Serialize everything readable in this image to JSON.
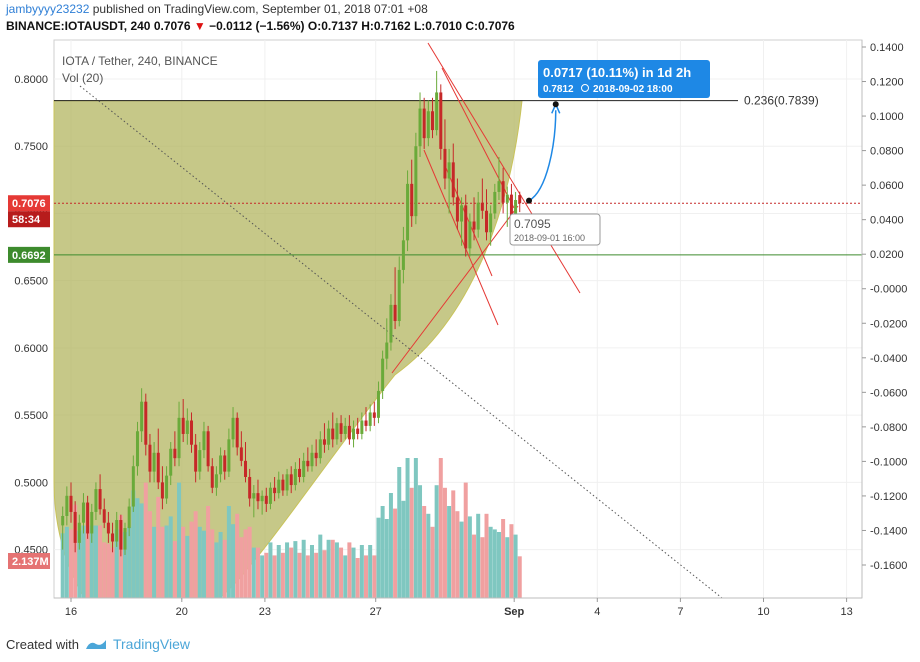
{
  "header": {
    "user": "jambyyyy23232",
    "published_text": "published on TradingView.com, September 01, 2018 07:01 +08",
    "symbol_line": "BINANCE:IOTAUSDT, 240",
    "last": "0.7076",
    "change": "−0.0112 (−1.56%)",
    "o_label": "O:",
    "o_value": "0.7137",
    "h_label": "H:",
    "h_value": "0.7162",
    "l_label": "L:",
    "l_value": "0.7010",
    "c_label": "C:",
    "c_value": "0.7076"
  },
  "legend": {
    "title": "IOTA / Tether, 240, BINANCE",
    "volume": "Vol (20)"
  },
  "footer": {
    "created_with": "Created with",
    "brand": "TradingView"
  },
  "colors": {
    "up": "#6aaa3a",
    "down": "#c62828",
    "vol_up": "#7fc7c0",
    "vol_down": "#f0a0a0",
    "cup_fill": "#b3b560",
    "accent_blue": "#1e88e5",
    "trend_red": "#e53935",
    "support_green": "#3d8b2d"
  },
  "chart_data": {
    "type": "candlestick",
    "title": "IOTA / Tether, 240, BINANCE",
    "left_axis": {
      "ticks": [
        "0.8000",
        "0.7500",
        "0.7000",
        "0.6500",
        "0.6000",
        "0.5500",
        "0.5000",
        "0.4500"
      ],
      "values": [
        0.8,
        0.75,
        0.7,
        0.65,
        0.6,
        0.55,
        0.5,
        0.45
      ],
      "ylim": [
        0.414,
        0.829
      ]
    },
    "right_axis": {
      "ticks": [
        "0.1400",
        "0.1200",
        "0.1000",
        "0.0800",
        "0.0600",
        "0.0400",
        "0.0200",
        "-0.0000",
        "-0.0200",
        "-0.0400",
        "-0.0600",
        "-0.0800",
        "-0.1000",
        "-0.1200",
        "-0.1400",
        "-0.1600"
      ],
      "values": [
        0.14,
        0.12,
        0.1,
        0.08,
        0.06,
        0.04,
        0.02,
        0,
        -0.02,
        -0.04,
        -0.06,
        -0.08,
        -0.1,
        -0.12,
        -0.14,
        -0.16
      ]
    },
    "x_axis": {
      "labels": [
        "16",
        "20",
        "23",
        "27",
        "Sep",
        "4",
        "7",
        "10",
        "13"
      ],
      "day_offsets": [
        0,
        4,
        7,
        11,
        16,
        19,
        22,
        25,
        28
      ]
    },
    "price_tags": {
      "current": "0.7076",
      "countdown": "58:34",
      "support": "0.6692",
      "volume": "2.137M"
    },
    "current_price": 0.7076,
    "support_price": 0.6692,
    "fib_level": {
      "label": "0.236(0.7839)",
      "price": 0.7839
    },
    "projection": {
      "label_main": "0.0717 (10.11%) in 1d 2h",
      "label_sub_price": "0.7812",
      "label_sub_date": "2018-09-02  18:00",
      "start_price": 0.7095,
      "start_label": "0.7095",
      "start_date": "2018-09-01 16:00",
      "end_price": 0.7812,
      "start_day": 16.2,
      "end_day": 17.5
    },
    "candles": [
      {
        "d": -0.3,
        "o": 0.468,
        "h": 0.482,
        "l": 0.45,
        "c": 0.475
      },
      {
        "d": -0.15,
        "o": 0.475,
        "h": 0.497,
        "l": 0.468,
        "c": 0.49
      },
      {
        "d": 0.0,
        "o": 0.49,
        "h": 0.5,
        "l": 0.47,
        "c": 0.478
      },
      {
        "d": 0.15,
        "o": 0.478,
        "h": 0.486,
        "l": 0.448,
        "c": 0.455
      },
      {
        "d": 0.3,
        "o": 0.455,
        "h": 0.476,
        "l": 0.45,
        "c": 0.47
      },
      {
        "d": 0.45,
        "o": 0.47,
        "h": 0.492,
        "l": 0.462,
        "c": 0.485
      },
      {
        "d": 0.6,
        "o": 0.485,
        "h": 0.49,
        "l": 0.458,
        "c": 0.462
      },
      {
        "d": 0.75,
        "o": 0.462,
        "h": 0.484,
        "l": 0.455,
        "c": 0.478
      },
      {
        "d": 0.9,
        "o": 0.478,
        "h": 0.5,
        "l": 0.472,
        "c": 0.495
      },
      {
        "d": 1.05,
        "o": 0.495,
        "h": 0.506,
        "l": 0.476,
        "c": 0.48
      },
      {
        "d": 1.2,
        "o": 0.48,
        "h": 0.488,
        "l": 0.466,
        "c": 0.47
      },
      {
        "d": 1.35,
        "o": 0.47,
        "h": 0.478,
        "l": 0.455,
        "c": 0.462
      },
      {
        "d": 1.5,
        "o": 0.462,
        "h": 0.47,
        "l": 0.448,
        "c": 0.456
      },
      {
        "d": 1.65,
        "o": 0.456,
        "h": 0.478,
        "l": 0.452,
        "c": 0.472
      },
      {
        "d": 1.8,
        "o": 0.472,
        "h": 0.476,
        "l": 0.445,
        "c": 0.45
      },
      {
        "d": 1.95,
        "o": 0.45,
        "h": 0.47,
        "l": 0.446,
        "c": 0.466
      },
      {
        "d": 2.1,
        "o": 0.466,
        "h": 0.488,
        "l": 0.46,
        "c": 0.482
      },
      {
        "d": 2.25,
        "o": 0.482,
        "h": 0.52,
        "l": 0.478,
        "c": 0.512
      },
      {
        "d": 2.4,
        "o": 0.512,
        "h": 0.545,
        "l": 0.505,
        "c": 0.538
      },
      {
        "d": 2.55,
        "o": 0.538,
        "h": 0.57,
        "l": 0.53,
        "c": 0.56
      },
      {
        "d": 2.7,
        "o": 0.56,
        "h": 0.566,
        "l": 0.52,
        "c": 0.528
      },
      {
        "d": 2.85,
        "o": 0.528,
        "h": 0.536,
        "l": 0.5,
        "c": 0.508
      },
      {
        "d": 3.0,
        "o": 0.508,
        "h": 0.53,
        "l": 0.5,
        "c": 0.522
      },
      {
        "d": 3.15,
        "o": 0.522,
        "h": 0.54,
        "l": 0.495,
        "c": 0.5
      },
      {
        "d": 3.3,
        "o": 0.5,
        "h": 0.512,
        "l": 0.48,
        "c": 0.488
      },
      {
        "d": 3.45,
        "o": 0.488,
        "h": 0.512,
        "l": 0.484,
        "c": 0.505
      },
      {
        "d": 3.6,
        "o": 0.505,
        "h": 0.53,
        "l": 0.498,
        "c": 0.525
      },
      {
        "d": 3.75,
        "o": 0.525,
        "h": 0.538,
        "l": 0.512,
        "c": 0.518
      },
      {
        "d": 3.9,
        "o": 0.518,
        "h": 0.56,
        "l": 0.512,
        "c": 0.548
      },
      {
        "d": 4.05,
        "o": 0.548,
        "h": 0.562,
        "l": 0.53,
        "c": 0.536
      },
      {
        "d": 4.2,
        "o": 0.536,
        "h": 0.555,
        "l": 0.528,
        "c": 0.546
      },
      {
        "d": 4.35,
        "o": 0.546,
        "h": 0.552,
        "l": 0.522,
        "c": 0.528
      },
      {
        "d": 4.5,
        "o": 0.528,
        "h": 0.536,
        "l": 0.5,
        "c": 0.508
      },
      {
        "d": 4.65,
        "o": 0.508,
        "h": 0.53,
        "l": 0.502,
        "c": 0.524
      },
      {
        "d": 4.8,
        "o": 0.524,
        "h": 0.545,
        "l": 0.518,
        "c": 0.538
      },
      {
        "d": 4.95,
        "o": 0.538,
        "h": 0.542,
        "l": 0.508,
        "c": 0.512
      },
      {
        "d": 5.1,
        "o": 0.512,
        "h": 0.518,
        "l": 0.492,
        "c": 0.496
      },
      {
        "d": 5.25,
        "o": 0.496,
        "h": 0.512,
        "l": 0.49,
        "c": 0.506
      },
      {
        "d": 5.4,
        "o": 0.506,
        "h": 0.526,
        "l": 0.5,
        "c": 0.52
      },
      {
        "d": 5.55,
        "o": 0.52,
        "h": 0.524,
        "l": 0.502,
        "c": 0.508
      },
      {
        "d": 5.7,
        "o": 0.508,
        "h": 0.54,
        "l": 0.504,
        "c": 0.532
      },
      {
        "d": 5.85,
        "o": 0.532,
        "h": 0.556,
        "l": 0.526,
        "c": 0.548
      },
      {
        "d": 6.0,
        "o": 0.548,
        "h": 0.552,
        "l": 0.52,
        "c": 0.526
      },
      {
        "d": 6.15,
        "o": 0.526,
        "h": 0.538,
        "l": 0.512,
        "c": 0.516
      },
      {
        "d": 6.3,
        "o": 0.516,
        "h": 0.53,
        "l": 0.5,
        "c": 0.504
      },
      {
        "d": 6.45,
        "o": 0.504,
        "h": 0.51,
        "l": 0.482,
        "c": 0.488
      },
      {
        "d": 6.6,
        "o": 0.488,
        "h": 0.498,
        "l": 0.474,
        "c": 0.492
      },
      {
        "d": 6.75,
        "o": 0.492,
        "h": 0.502,
        "l": 0.48,
        "c": 0.486
      },
      {
        "d": 6.9,
        "o": 0.486,
        "h": 0.494,
        "l": 0.476,
        "c": 0.49
      },
      {
        "d": 7.05,
        "o": 0.49,
        "h": 0.496,
        "l": 0.478,
        "c": 0.484
      },
      {
        "d": 7.2,
        "o": 0.484,
        "h": 0.5,
        "l": 0.48,
        "c": 0.496
      },
      {
        "d": 7.35,
        "o": 0.496,
        "h": 0.504,
        "l": 0.486,
        "c": 0.492
      },
      {
        "d": 7.5,
        "o": 0.492,
        "h": 0.508,
        "l": 0.488,
        "c": 0.502
      },
      {
        "d": 7.65,
        "o": 0.502,
        "h": 0.506,
        "l": 0.49,
        "c": 0.494
      },
      {
        "d": 7.8,
        "o": 0.494,
        "h": 0.51,
        "l": 0.49,
        "c": 0.506
      },
      {
        "d": 7.95,
        "o": 0.506,
        "h": 0.512,
        "l": 0.492,
        "c": 0.498
      },
      {
        "d": 8.1,
        "o": 0.498,
        "h": 0.515,
        "l": 0.494,
        "c": 0.51
      },
      {
        "d": 8.25,
        "o": 0.51,
        "h": 0.518,
        "l": 0.5,
        "c": 0.504
      },
      {
        "d": 8.4,
        "o": 0.504,
        "h": 0.522,
        "l": 0.5,
        "c": 0.516
      },
      {
        "d": 8.55,
        "o": 0.516,
        "h": 0.526,
        "l": 0.508,
        "c": 0.512
      },
      {
        "d": 8.7,
        "o": 0.512,
        "h": 0.528,
        "l": 0.508,
        "c": 0.522
      },
      {
        "d": 8.85,
        "o": 0.522,
        "h": 0.532,
        "l": 0.512,
        "c": 0.518
      },
      {
        "d": 9.0,
        "o": 0.518,
        "h": 0.538,
        "l": 0.514,
        "c": 0.532
      },
      {
        "d": 9.15,
        "o": 0.532,
        "h": 0.544,
        "l": 0.522,
        "c": 0.528
      },
      {
        "d": 9.3,
        "o": 0.528,
        "h": 0.546,
        "l": 0.524,
        "c": 0.54
      },
      {
        "d": 9.45,
        "o": 0.54,
        "h": 0.552,
        "l": 0.526,
        "c": 0.532
      },
      {
        "d": 9.6,
        "o": 0.532,
        "h": 0.548,
        "l": 0.528,
        "c": 0.544
      },
      {
        "d": 9.75,
        "o": 0.544,
        "h": 0.55,
        "l": 0.53,
        "c": 0.536
      },
      {
        "d": 9.9,
        "o": 0.536,
        "h": 0.548,
        "l": 0.532,
        "c": 0.542
      },
      {
        "d": 10.05,
        "o": 0.542,
        "h": 0.55,
        "l": 0.528,
        "c": 0.532
      },
      {
        "d": 10.2,
        "o": 0.532,
        "h": 0.546,
        "l": 0.526,
        "c": 0.54
      },
      {
        "d": 10.35,
        "o": 0.54,
        "h": 0.548,
        "l": 0.532,
        "c": 0.536
      },
      {
        "d": 10.5,
        "o": 0.536,
        "h": 0.552,
        "l": 0.532,
        "c": 0.546
      },
      {
        "d": 10.65,
        "o": 0.546,
        "h": 0.556,
        "l": 0.538,
        "c": 0.542
      },
      {
        "d": 10.8,
        "o": 0.542,
        "h": 0.558,
        "l": 0.538,
        "c": 0.552
      },
      {
        "d": 10.95,
        "o": 0.552,
        "h": 0.56,
        "l": 0.542,
        "c": 0.548
      },
      {
        "d": 11.1,
        "o": 0.548,
        "h": 0.575,
        "l": 0.544,
        "c": 0.568
      },
      {
        "d": 11.25,
        "o": 0.568,
        "h": 0.598,
        "l": 0.562,
        "c": 0.592
      },
      {
        "d": 11.4,
        "o": 0.592,
        "h": 0.622,
        "l": 0.584,
        "c": 0.604
      },
      {
        "d": 11.55,
        "o": 0.604,
        "h": 0.64,
        "l": 0.598,
        "c": 0.632
      },
      {
        "d": 11.7,
        "o": 0.632,
        "h": 0.66,
        "l": 0.614,
        "c": 0.62
      },
      {
        "d": 11.85,
        "o": 0.62,
        "h": 0.668,
        "l": 0.616,
        "c": 0.658
      },
      {
        "d": 12.0,
        "o": 0.658,
        "h": 0.69,
        "l": 0.648,
        "c": 0.68
      },
      {
        "d": 12.15,
        "o": 0.68,
        "h": 0.732,
        "l": 0.672,
        "c": 0.722
      },
      {
        "d": 12.3,
        "o": 0.722,
        "h": 0.74,
        "l": 0.69,
        "c": 0.698
      },
      {
        "d": 12.45,
        "o": 0.698,
        "h": 0.76,
        "l": 0.692,
        "c": 0.75
      },
      {
        "d": 12.6,
        "o": 0.75,
        "h": 0.79,
        "l": 0.742,
        "c": 0.778
      },
      {
        "d": 12.75,
        "o": 0.778,
        "h": 0.786,
        "l": 0.748,
        "c": 0.756
      },
      {
        "d": 12.9,
        "o": 0.756,
        "h": 0.784,
        "l": 0.75,
        "c": 0.776
      },
      {
        "d": 13.05,
        "o": 0.776,
        "h": 0.786,
        "l": 0.756,
        "c": 0.762
      },
      {
        "d": 13.2,
        "o": 0.762,
        "h": 0.806,
        "l": 0.758,
        "c": 0.79
      },
      {
        "d": 13.35,
        "o": 0.79,
        "h": 0.796,
        "l": 0.74,
        "c": 0.748
      },
      {
        "d": 13.5,
        "o": 0.748,
        "h": 0.77,
        "l": 0.718,
        "c": 0.726
      },
      {
        "d": 13.65,
        "o": 0.726,
        "h": 0.748,
        "l": 0.7,
        "c": 0.738
      },
      {
        "d": 13.8,
        "o": 0.738,
        "h": 0.752,
        "l": 0.706,
        "c": 0.712
      },
      {
        "d": 13.95,
        "o": 0.712,
        "h": 0.726,
        "l": 0.688,
        "c": 0.694
      },
      {
        "d": 14.1,
        "o": 0.694,
        "h": 0.712,
        "l": 0.676,
        "c": 0.706
      },
      {
        "d": 14.25,
        "o": 0.706,
        "h": 0.714,
        "l": 0.668,
        "c": 0.674
      },
      {
        "d": 14.4,
        "o": 0.674,
        "h": 0.7,
        "l": 0.668,
        "c": 0.694
      },
      {
        "d": 14.55,
        "o": 0.694,
        "h": 0.712,
        "l": 0.68,
        "c": 0.688
      },
      {
        "d": 14.7,
        "o": 0.688,
        "h": 0.716,
        "l": 0.682,
        "c": 0.708
      },
      {
        "d": 14.85,
        "o": 0.708,
        "h": 0.726,
        "l": 0.696,
        "c": 0.702
      },
      {
        "d": 15.0,
        "o": 0.702,
        "h": 0.718,
        "l": 0.68,
        "c": 0.686
      },
      {
        "d": 15.15,
        "o": 0.686,
        "h": 0.706,
        "l": 0.676,
        "c": 0.7
      },
      {
        "d": 15.3,
        "o": 0.7,
        "h": 0.722,
        "l": 0.696,
        "c": 0.716
      },
      {
        "d": 15.45,
        "o": 0.716,
        "h": 0.742,
        "l": 0.71,
        "c": 0.724
      },
      {
        "d": 15.6,
        "o": 0.724,
        "h": 0.734,
        "l": 0.7,
        "c": 0.708
      },
      {
        "d": 15.75,
        "o": 0.708,
        "h": 0.72,
        "l": 0.69,
        "c": 0.714
      },
      {
        "d": 15.9,
        "o": 0.714,
        "h": 0.722,
        "l": 0.692,
        "c": 0.698
      },
      {
        "d": 16.05,
        "o": 0.698,
        "h": 0.716,
        "l": 0.69,
        "c": 0.71
      },
      {
        "d": 16.2,
        "o": 0.7137,
        "h": 0.7162,
        "l": 0.701,
        "c": 0.7076
      }
    ]
  }
}
